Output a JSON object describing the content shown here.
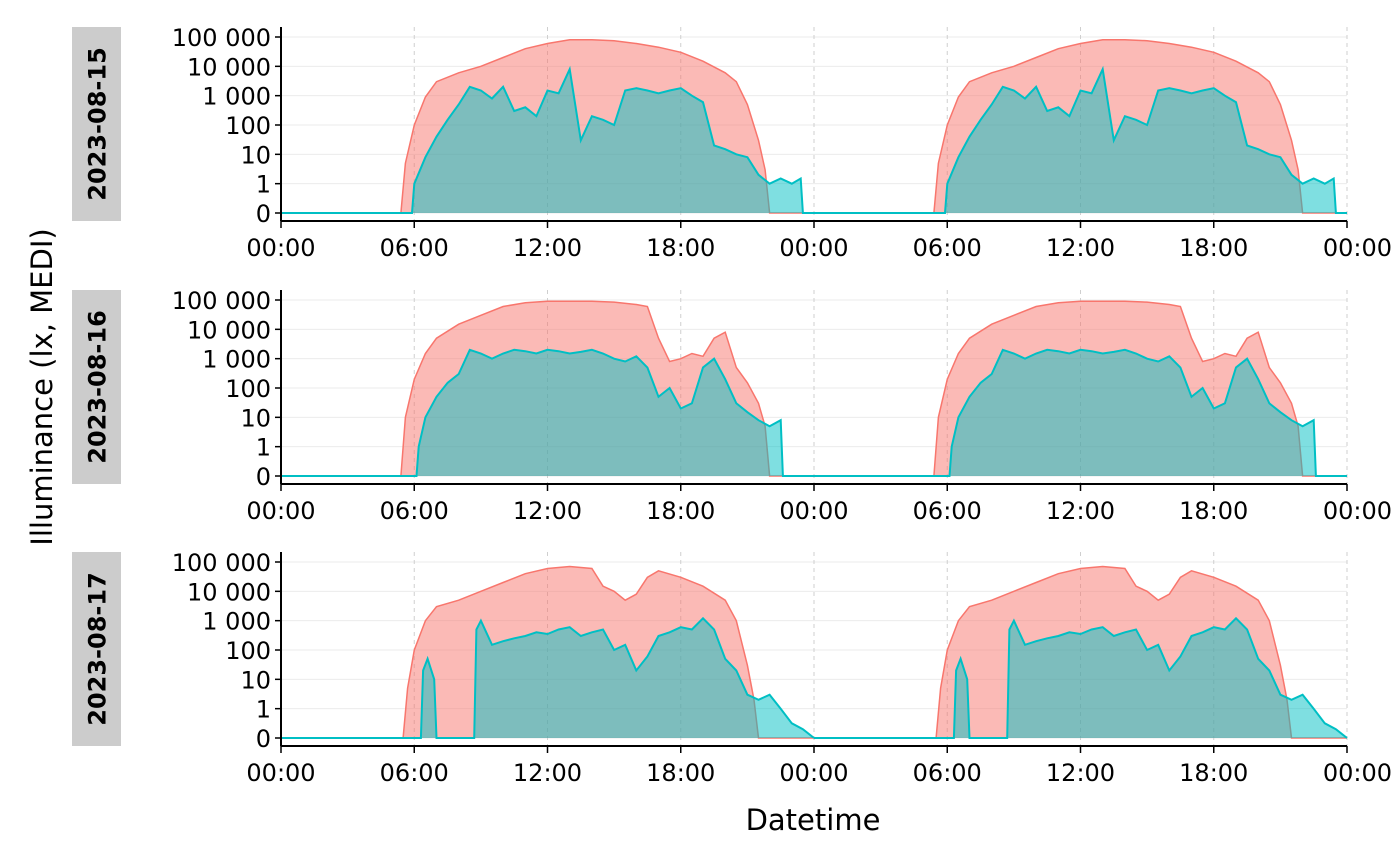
{
  "chart_data": {
    "type": "area",
    "xlabel": "Datetime",
    "ylabel": "Illuminance (lx, MEDI)",
    "y_scale": "symlog",
    "yticks": [
      0,
      1,
      10,
      100,
      1000,
      10000,
      100000
    ],
    "ytick_labels": [
      "0",
      "1",
      "10",
      "100",
      "1 000",
      "10 000",
      "100 000"
    ],
    "x_range_hours": [
      0,
      48
    ],
    "xticks_hours": [
      0,
      6,
      12,
      18,
      24,
      30,
      36,
      42,
      48
    ],
    "xtick_labels": [
      "00:00",
      "06:00",
      "12:00",
      "18:00",
      "00:00",
      "06:00",
      "12:00",
      "18:00",
      "00:00"
    ],
    "grid": true,
    "legend": "none",
    "colors": {
      "upper": "#F8766D",
      "lower": "#00BFC4",
      "strip": "#cccccc"
    },
    "panels": [
      {
        "label": "2023-08-15",
        "series": [
          {
            "color": "#F8766D",
            "hours": [
              0,
              5.4,
              5.6,
              6.0,
              6.5,
              7.0,
              8.0,
              9.0,
              10.0,
              11.0,
              12.0,
              13.0,
              14.0,
              15.0,
              16.0,
              17.0,
              18.0,
              19.0,
              20.0,
              20.5,
              21.0,
              21.5,
              21.8,
              22.0,
              24.0
            ],
            "values": [
              0,
              0,
              5,
              100,
              900,
              3000,
              6000,
              10000,
              20000,
              40000,
              60000,
              80000,
              80000,
              75000,
              60000,
              45000,
              30000,
              15000,
              6000,
              3000,
              500,
              30,
              3,
              0,
              0
            ]
          },
          {
            "color": "#00BFC4",
            "hours": [
              0,
              5.9,
              6.0,
              6.5,
              7.0,
              7.5,
              8.0,
              8.5,
              9.0,
              9.5,
              10.0,
              10.5,
              11.0,
              11.5,
              12.0,
              12.5,
              13.0,
              13.5,
              14.0,
              14.5,
              15.0,
              15.5,
              16.0,
              16.5,
              17.0,
              17.5,
              18.0,
              18.5,
              19.0,
              19.5,
              20.0,
              20.5,
              21.0,
              21.5,
              22.0,
              22.5,
              23.0,
              23.4,
              23.5,
              24.0
            ],
            "values": [
              0,
              0,
              1,
              8,
              40,
              150,
              500,
              2000,
              1500,
              800,
              2000,
              300,
              400,
              200,
              1500,
              1200,
              8000,
              30,
              200,
              150,
              100,
              1500,
              1800,
              1500,
              1200,
              1500,
              1800,
              1000,
              600,
              20,
              15,
              10,
              8,
              2,
              1,
              1.5,
              1,
              1.5,
              0,
              0
            ]
          }
        ]
      },
      {
        "label": "2023-08-16",
        "series": [
          {
            "color": "#F8766D",
            "hours": [
              0,
              5.4,
              5.6,
              6.0,
              6.5,
              7.0,
              8.0,
              9.0,
              10.0,
              11.0,
              12.0,
              13.0,
              14.0,
              15.0,
              16.0,
              16.5,
              17.0,
              17.5,
              18.0,
              18.5,
              19.0,
              19.5,
              20.0,
              20.5,
              21.0,
              21.5,
              21.8,
              22.0,
              24.0
            ],
            "values": [
              0,
              0,
              10,
              200,
              1500,
              5000,
              15000,
              30000,
              60000,
              80000,
              90000,
              90000,
              90000,
              85000,
              70000,
              60000,
              5000,
              800,
              1000,
              1500,
              1200,
              5000,
              8000,
              500,
              150,
              30,
              5,
              0,
              0
            ]
          },
          {
            "color": "#00BFC4",
            "hours": [
              0,
              6.1,
              6.2,
              6.5,
              7.0,
              7.5,
              8.0,
              8.5,
              9.0,
              9.5,
              10.0,
              10.5,
              11.0,
              11.5,
              12.0,
              12.5,
              13.0,
              13.5,
              14.0,
              14.5,
              15.0,
              15.5,
              16.0,
              16.5,
              17.0,
              17.5,
              18.0,
              18.5,
              19.0,
              19.5,
              20.0,
              20.5,
              21.0,
              21.5,
              22.0,
              22.5,
              22.6,
              24.0
            ],
            "values": [
              0,
              0,
              1,
              10,
              50,
              150,
              300,
              2000,
              1500,
              1000,
              1500,
              2000,
              1800,
              1500,
              2000,
              1800,
              1500,
              1700,
              2000,
              1500,
              1000,
              800,
              1200,
              500,
              50,
              100,
              20,
              30,
              500,
              1000,
              200,
              30,
              15,
              8,
              5,
              8,
              0,
              0
            ]
          }
        ]
      },
      {
        "label": "2023-08-17",
        "series": [
          {
            "color": "#F8766D",
            "hours": [
              0,
              5.5,
              5.7,
              6.0,
              6.5,
              7.0,
              8.0,
              9.0,
              10.0,
              11.0,
              12.0,
              13.0,
              14.0,
              14.5,
              15.0,
              15.5,
              16.0,
              16.5,
              17.0,
              18.0,
              19.0,
              20.0,
              20.5,
              21.0,
              21.3,
              21.5,
              22.0,
              24.0
            ],
            "values": [
              0,
              0,
              5,
              100,
              1000,
              3000,
              5000,
              10000,
              20000,
              40000,
              60000,
              70000,
              60000,
              15000,
              10000,
              5000,
              8000,
              30000,
              50000,
              30000,
              15000,
              5000,
              1000,
              30,
              2,
              0,
              0,
              0
            ]
          },
          {
            "color": "#00BFC4",
            "hours": [
              0,
              6.3,
              6.4,
              6.6,
              6.9,
              7.0,
              8.7,
              8.8,
              9.0,
              9.5,
              10.0,
              10.5,
              11.0,
              11.5,
              12.0,
              12.5,
              13.0,
              13.5,
              14.0,
              14.5,
              15.0,
              15.5,
              16.0,
              16.5,
              17.0,
              17.5,
              18.0,
              18.5,
              19.0,
              19.5,
              20.0,
              20.5,
              21.0,
              21.5,
              22.0,
              22.5,
              23.0,
              23.5,
              24.0
            ],
            "values": [
              0,
              0,
              20,
              50,
              10,
              0,
              0,
              500,
              1000,
              150,
              200,
              250,
              300,
              400,
              350,
              500,
              600,
              300,
              400,
              500,
              100,
              150,
              20,
              60,
              300,
              400,
              600,
              500,
              1200,
              500,
              50,
              20,
              3,
              2,
              3,
              1,
              0.5,
              0.3,
              0
            ]
          }
        ]
      }
    ]
  }
}
